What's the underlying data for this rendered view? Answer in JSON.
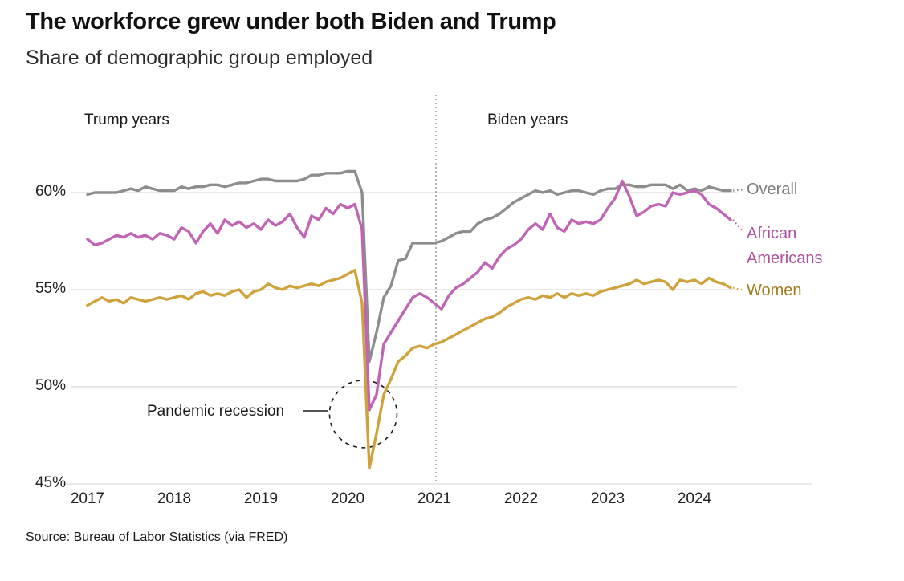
{
  "header": {
    "title": "The workforce grew under both Biden and Trump",
    "subtitle": "Share of demographic group employed"
  },
  "annotations": {
    "trump_era": "Trump years",
    "biden_era": "Biden years",
    "recession": "Pandemic recession"
  },
  "source": "Source: Bureau of Labor Statistics (via FRED)",
  "chart_data": {
    "type": "line",
    "title": "Share of demographic group employed",
    "x_unit": "monthly, starting Jan 2017",
    "x_ticks": [
      "2017",
      "2018",
      "2019",
      "2020",
      "2021",
      "2022",
      "2023",
      "2024"
    ],
    "y_ticks": [
      "60%",
      "55%",
      "50%",
      "45%"
    ],
    "y_tick_values": [
      60,
      55,
      50,
      45
    ],
    "ylim": [
      45,
      61.5
    ],
    "grid": true,
    "divider_at_tick": "2021",
    "legend_position": "right-of-lines",
    "series": [
      {
        "name": "Overall",
        "color": "#8d8d8d",
        "label_color": "#7d7d7d",
        "values": [
          59.9,
          60.0,
          60.0,
          60.0,
          60.0,
          60.1,
          60.2,
          60.1,
          60.3,
          60.2,
          60.1,
          60.1,
          60.1,
          60.3,
          60.2,
          60.3,
          60.3,
          60.4,
          60.4,
          60.3,
          60.4,
          60.5,
          60.5,
          60.6,
          60.7,
          60.7,
          60.6,
          60.6,
          60.6,
          60.6,
          60.7,
          60.9,
          60.9,
          61.0,
          61.0,
          61.0,
          61.1,
          61.1,
          60.0,
          51.3,
          52.8,
          54.6,
          55.2,
          56.5,
          56.6,
          57.4,
          57.4,
          57.4,
          57.4,
          57.5,
          57.7,
          57.9,
          58.0,
          58.0,
          58.4,
          58.6,
          58.7,
          58.9,
          59.2,
          59.5,
          59.7,
          59.9,
          60.1,
          60.0,
          60.1,
          59.9,
          60.0,
          60.1,
          60.1,
          60.0,
          59.9,
          60.1,
          60.2,
          60.2,
          60.4,
          60.4,
          60.3,
          60.3,
          60.4,
          60.4,
          60.4,
          60.2,
          60.4,
          60.1,
          60.2,
          60.1,
          60.3,
          60.2,
          60.1,
          60.1
        ]
      },
      {
        "name": "African Americans",
        "color": "#c064b5",
        "label_color": "#b1509e",
        "values": [
          57.6,
          57.3,
          57.4,
          57.6,
          57.8,
          57.7,
          57.9,
          57.7,
          57.8,
          57.6,
          57.9,
          57.8,
          57.6,
          58.2,
          58.0,
          57.4,
          58.0,
          58.4,
          57.9,
          58.6,
          58.3,
          58.5,
          58.2,
          58.4,
          58.1,
          58.6,
          58.3,
          58.5,
          58.9,
          58.2,
          57.7,
          58.8,
          58.6,
          59.2,
          58.9,
          59.4,
          59.2,
          59.4,
          58.1,
          48.8,
          49.6,
          52.2,
          52.8,
          53.4,
          54.0,
          54.6,
          54.8,
          54.6,
          54.3,
          54.0,
          54.7,
          55.1,
          55.3,
          55.6,
          55.9,
          56.4,
          56.1,
          56.7,
          57.1,
          57.3,
          57.6,
          58.1,
          58.4,
          58.1,
          58.9,
          58.2,
          58.0,
          58.6,
          58.4,
          58.5,
          58.4,
          58.6,
          59.2,
          59.7,
          60.6,
          59.8,
          58.8,
          59.0,
          59.3,
          59.4,
          59.3,
          60.0,
          59.9,
          60.0,
          60.1,
          59.9,
          59.4,
          59.2,
          58.9,
          58.6
        ]
      },
      {
        "name": "Women",
        "color": "#d0a23c",
        "label_color": "#a07c1a",
        "values": [
          54.2,
          54.4,
          54.6,
          54.4,
          54.5,
          54.3,
          54.6,
          54.5,
          54.4,
          54.5,
          54.6,
          54.5,
          54.6,
          54.7,
          54.5,
          54.8,
          54.9,
          54.7,
          54.8,
          54.7,
          54.9,
          55.0,
          54.6,
          54.9,
          55.0,
          55.3,
          55.1,
          55.0,
          55.2,
          55.1,
          55.2,
          55.3,
          55.2,
          55.4,
          55.5,
          55.6,
          55.8,
          56.0,
          54.3,
          45.8,
          47.6,
          49.6,
          50.4,
          51.3,
          51.6,
          52.0,
          52.1,
          52.0,
          52.2,
          52.3,
          52.5,
          52.7,
          52.9,
          53.1,
          53.3,
          53.5,
          53.6,
          53.8,
          54.1,
          54.3,
          54.5,
          54.6,
          54.5,
          54.7,
          54.6,
          54.8,
          54.6,
          54.8,
          54.7,
          54.8,
          54.7,
          54.9,
          55.0,
          55.1,
          55.2,
          55.3,
          55.5,
          55.3,
          55.4,
          55.5,
          55.4,
          55.0,
          55.5,
          55.4,
          55.5,
          55.3,
          55.6,
          55.4,
          55.3,
          55.1
        ]
      }
    ],
    "recession_annotation": {
      "label": "Pandemic recession",
      "circle_center_year": 2020.18,
      "circle_center_value": 48.6
    }
  }
}
